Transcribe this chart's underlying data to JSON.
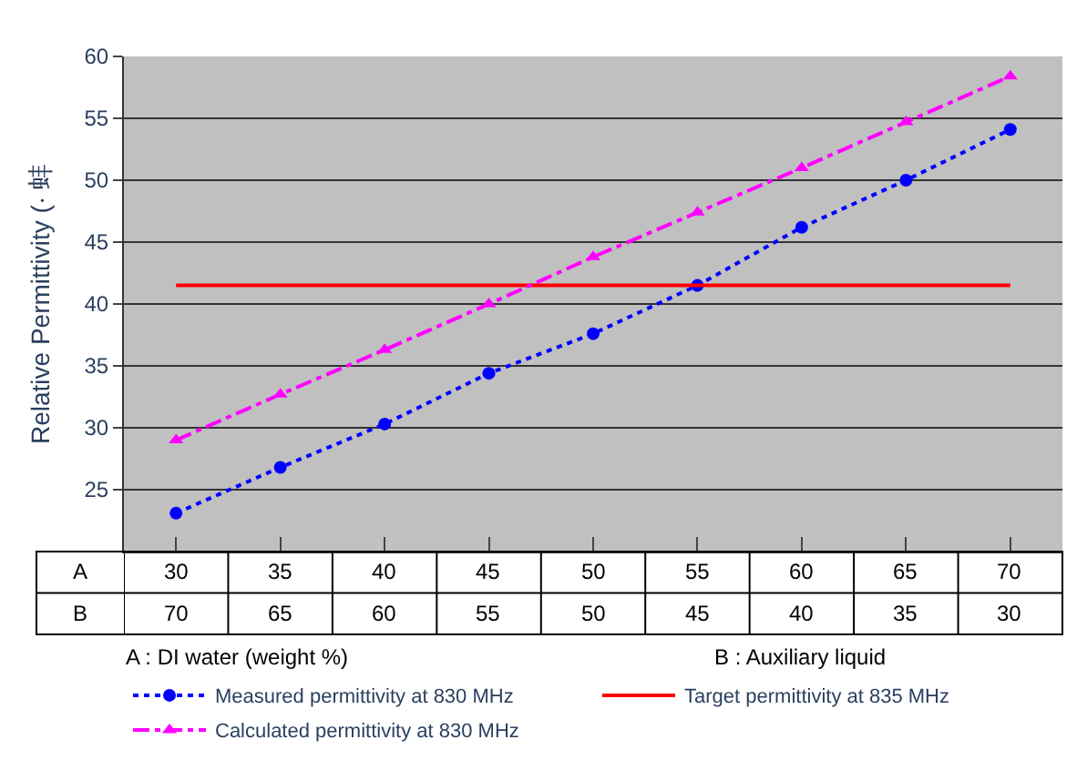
{
  "chart_data": {
    "type": "line",
    "ylabel": "Relative Permittivity (· 蚌",
    "categories": [
      "30",
      "35",
      "40",
      "45",
      "50",
      "55",
      "60",
      "65",
      "70"
    ],
    "series": [
      {
        "name": "Measured permittivity at 830 MHz",
        "color": "#0000ff",
        "marker": "circle",
        "line_style": "dotted",
        "values": [
          23.1,
          26.8,
          30.3,
          34.4,
          37.6,
          41.5,
          46.2,
          50.0,
          54.1
        ]
      },
      {
        "name": "Target permittivity at 835 MHz",
        "color": "#ff0000",
        "marker": "none",
        "line_style": "solid",
        "values": [
          41.5,
          41.5,
          41.5,
          41.5,
          41.5,
          41.5,
          41.5,
          41.5,
          41.5
        ]
      },
      {
        "name": "Calculated permittivity at 830 MHz",
        "color": "#ff00ff",
        "marker": "triangle",
        "line_style": "dashed",
        "values": [
          29.0,
          32.7,
          36.3,
          40.0,
          43.8,
          47.4,
          51.0,
          54.7,
          58.4
        ]
      }
    ],
    "ylim": [
      20,
      60
    ],
    "yticks": [
      {
        "value": 20,
        "label": null
      },
      25,
      30,
      35,
      40,
      45,
      50,
      55,
      60
    ],
    "grid": "y",
    "legend": "bottom",
    "annotations": [
      "A",
      "B",
      "70",
      "65",
      "60",
      "55",
      "50",
      "45",
      "40",
      "35",
      "30",
      "A : DI water (weight %)",
      "B : Auxiliary liquid"
    ]
  }
}
